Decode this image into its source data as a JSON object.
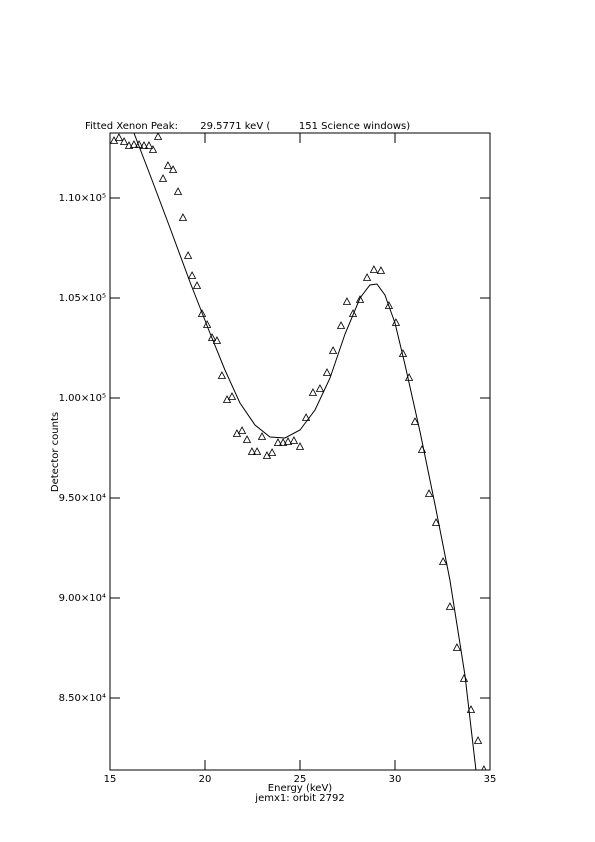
{
  "chart_data": {
    "type": "scatter",
    "title": "Fitted Xenon Peak:       29.5771 keV (         151 Science windows)",
    "xlabel": "Energy (keV)",
    "subtitle": "jemx1: orbit 2792",
    "ylabel": "Detector counts",
    "xlim": [
      15,
      35
    ],
    "xticks": [
      15,
      20,
      25,
      30,
      35
    ],
    "ylim": [
      81400,
      113250
    ],
    "yticks": [
      {
        "value": 85000,
        "label": "8.50×10⁴"
      },
      {
        "value": 90000,
        "label": "9.00×10⁴"
      },
      {
        "value": 95000,
        "label": "9.50×10⁴"
      },
      {
        "value": 100000,
        "label": "1.00×10⁵"
      },
      {
        "value": 105000,
        "label": "1.05×10⁵"
      },
      {
        "value": 110000,
        "label": "1.10×10⁵"
      }
    ],
    "series": [
      {
        "type": "scatter",
        "color": "#000000",
        "x": [
          15.21,
          15.47,
          15.74,
          16.0,
          16.26,
          16.53,
          16.79,
          17.05,
          17.26,
          17.53,
          17.79,
          18.05,
          18.32,
          18.58,
          18.84,
          19.11,
          19.32,
          19.58,
          19.84,
          20.11,
          20.37,
          20.63,
          20.89,
          21.16,
          21.42,
          21.68,
          21.95,
          22.21,
          22.47,
          22.74,
          23.0,
          23.26,
          23.53,
          23.84,
          24.11,
          24.37,
          24.68,
          25.0,
          25.32,
          25.68,
          26.05,
          26.42,
          26.74,
          27.16,
          27.47,
          27.79,
          28.16,
          28.53,
          28.89,
          29.26,
          29.68,
          30.05,
          30.42,
          30.74,
          31.05,
          31.42,
          31.79,
          32.16,
          32.53,
          32.89,
          33.26,
          33.63,
          34.0,
          34.37,
          34.68
        ],
        "values": [
          112850,
          113000,
          112800,
          112600,
          112650,
          112650,
          112600,
          112600,
          112400,
          113050,
          110950,
          111600,
          111400,
          110300,
          109000,
          107100,
          106100,
          105600,
          104200,
          103650,
          103000,
          102850,
          101100,
          99900,
          100050,
          98200,
          98350,
          97900,
          97300,
          97300,
          98050,
          97100,
          97250,
          97750,
          97750,
          97800,
          97850,
          97550,
          99000,
          100250,
          100450,
          101250,
          102350,
          103600,
          104800,
          104200,
          104900,
          106000,
          106400,
          106350,
          104600,
          103750,
          102200,
          101000,
          98800,
          97400,
          95200,
          93750,
          91800,
          89550,
          87500,
          85950,
          84400,
          82850,
          81400
        ]
      },
      {
        "type": "line",
        "color": "#000000",
        "x": [
          16.26,
          17.11,
          18.16,
          19.21,
          20.26,
          21.05,
          21.84,
          22.63,
          23.42,
          24.21,
          25.0,
          25.79,
          26.58,
          27.37,
          28.16,
          28.68,
          29.05,
          29.47,
          30.0,
          30.53,
          31.32,
          32.11,
          32.89,
          33.68,
          34.26
        ],
        "values": [
          113250,
          111150,
          108500,
          105800,
          103250,
          101400,
          99750,
          98650,
          98050,
          98000,
          98400,
          99400,
          101000,
          103200,
          105000,
          105650,
          105700,
          105150,
          103750,
          101650,
          98300,
          94650,
          90900,
          86150,
          81400
        ]
      }
    ]
  }
}
